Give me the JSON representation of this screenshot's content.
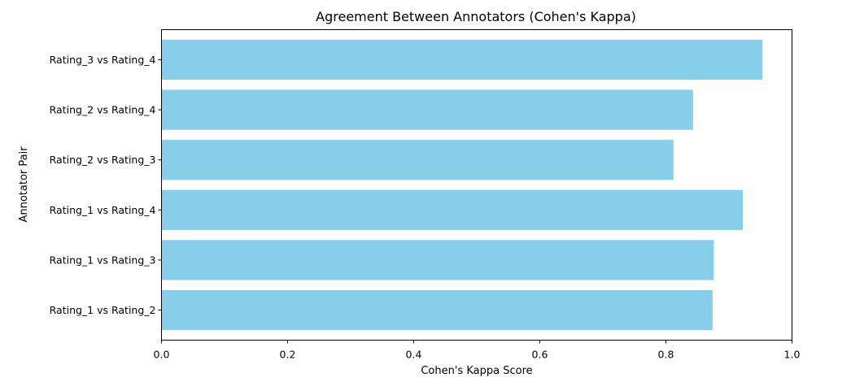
{
  "chart_data": {
    "type": "bar",
    "orientation": "horizontal",
    "title": "Agreement Between Annotators (Cohen's Kappa)",
    "xlabel": "Cohen's Kappa Score",
    "ylabel": "Annotator Pair",
    "xlim": [
      0,
      1.0
    ],
    "xticks": [
      0.0,
      0.2,
      0.4,
      0.6,
      0.8,
      1.0
    ],
    "xtick_labels": [
      "0.0",
      "0.2",
      "0.4",
      "0.6",
      "0.8",
      "1.0"
    ],
    "grid": false,
    "legend": false,
    "bar_color": "#87CEEB",
    "categories": [
      "Rating_1 vs Rating_2",
      "Rating_1 vs Rating_3",
      "Rating_1 vs Rating_4",
      "Rating_2 vs Rating_3",
      "Rating_2 vs Rating_4",
      "Rating_3 vs Rating_4"
    ],
    "values": [
      0.874,
      0.876,
      0.922,
      0.812,
      0.843,
      0.953
    ]
  }
}
